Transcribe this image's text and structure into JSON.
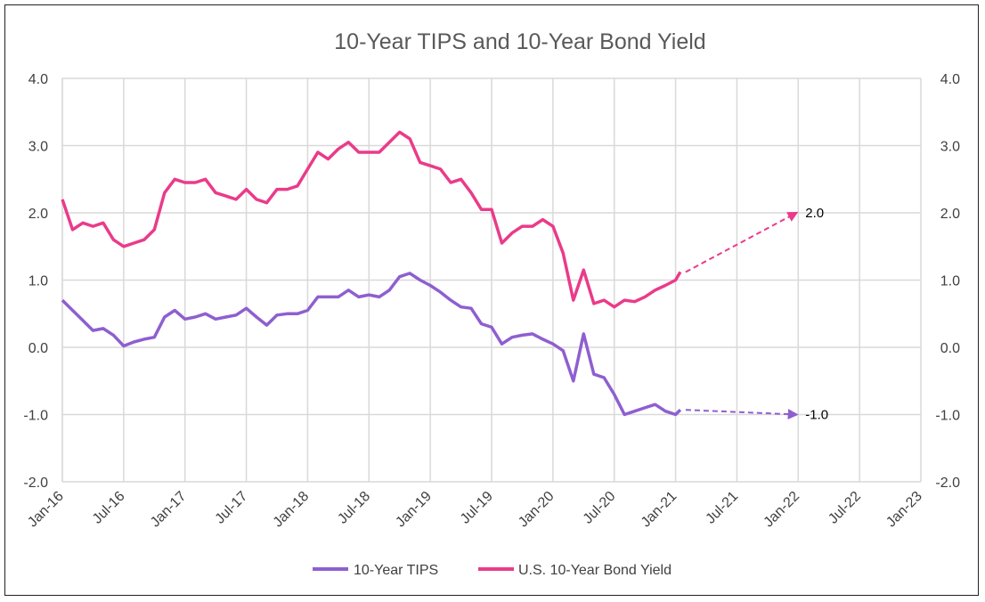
{
  "chart_data": {
    "type": "line",
    "title": "10-Year TIPS and 10-Year Bond Yield",
    "x_ticks": [
      "Jan-16",
      "Jul-16",
      "Jan-17",
      "Jul-17",
      "Jan-18",
      "Jul-18",
      "Jan-19",
      "Jul-19",
      "Jan-20",
      "Jul-20",
      "Jan-21",
      "Jul-21",
      "Jan-22",
      "Jul-22",
      "Jan-23"
    ],
    "xlim": [
      "2016-01",
      "2023-01"
    ],
    "ylim": [
      -2.0,
      4.0
    ],
    "y_ticks": [
      "-2.0",
      "-1.0",
      "0.0",
      "1.0",
      "2.0",
      "3.0",
      "4.0"
    ],
    "grid": true,
    "legend_position": "bottom",
    "series": [
      {
        "name": "10-Year TIPS",
        "color": "#8e5fd0",
        "points": [
          [
            "2016-01",
            0.7
          ],
          [
            "2016-02",
            0.55
          ],
          [
            "2016-03",
            0.4
          ],
          [
            "2016-04",
            0.25
          ],
          [
            "2016-05",
            0.28
          ],
          [
            "2016-06",
            0.18
          ],
          [
            "2016-07",
            0.02
          ],
          [
            "2016-08",
            0.08
          ],
          [
            "2016-09",
            0.12
          ],
          [
            "2016-10",
            0.15
          ],
          [
            "2016-11",
            0.45
          ],
          [
            "2016-12",
            0.55
          ],
          [
            "2017-01",
            0.42
          ],
          [
            "2017-02",
            0.45
          ],
          [
            "2017-03",
            0.5
          ],
          [
            "2017-04",
            0.42
          ],
          [
            "2017-05",
            0.45
          ],
          [
            "2017-06",
            0.48
          ],
          [
            "2017-07",
            0.58
          ],
          [
            "2017-08",
            0.45
          ],
          [
            "2017-09",
            0.33
          ],
          [
            "2017-10",
            0.48
          ],
          [
            "2017-11",
            0.5
          ],
          [
            "2017-12",
            0.5
          ],
          [
            "2018-01",
            0.55
          ],
          [
            "2018-02",
            0.75
          ],
          [
            "2018-03",
            0.75
          ],
          [
            "2018-04",
            0.75
          ],
          [
            "2018-05",
            0.85
          ],
          [
            "2018-06",
            0.75
          ],
          [
            "2018-07",
            0.78
          ],
          [
            "2018-08",
            0.75
          ],
          [
            "2018-09",
            0.85
          ],
          [
            "2018-10",
            1.05
          ],
          [
            "2018-11",
            1.1
          ],
          [
            "2018-12",
            1.0
          ],
          [
            "2019-01",
            0.92
          ],
          [
            "2019-02",
            0.82
          ],
          [
            "2019-03",
            0.7
          ],
          [
            "2019-04",
            0.6
          ],
          [
            "2019-05",
            0.58
          ],
          [
            "2019-06",
            0.35
          ],
          [
            "2019-07",
            0.3
          ],
          [
            "2019-08",
            0.05
          ],
          [
            "2019-09",
            0.15
          ],
          [
            "2019-10",
            0.18
          ],
          [
            "2019-11",
            0.2
          ],
          [
            "2019-12",
            0.12
          ],
          [
            "2020-01",
            0.05
          ],
          [
            "2020-02",
            -0.05
          ],
          [
            "2020-03",
            -0.5
          ],
          [
            "2020-04",
            0.2
          ],
          [
            "2020-05",
            -0.4
          ],
          [
            "2020-06",
            -0.45
          ],
          [
            "2020-07",
            -0.7
          ],
          [
            "2020-08",
            -1.0
          ],
          [
            "2020-09",
            -0.95
          ],
          [
            "2020-10",
            -0.9
          ],
          [
            "2020-11",
            -0.85
          ],
          [
            "2020-12",
            -0.95
          ],
          [
            "2021-01",
            -1.0
          ],
          [
            "2021-01-15",
            -0.93
          ]
        ],
        "projection": {
          "to": "2022-01",
          "value": -1.0,
          "label": "-1.0"
        }
      },
      {
        "name": "U.S. 10-Year Bond Yield",
        "color": "#ea3b8a",
        "points": [
          [
            "2016-01",
            2.2
          ],
          [
            "2016-02",
            1.75
          ],
          [
            "2016-03",
            1.85
          ],
          [
            "2016-04",
            1.8
          ],
          [
            "2016-05",
            1.85
          ],
          [
            "2016-06",
            1.6
          ],
          [
            "2016-07",
            1.5
          ],
          [
            "2016-08",
            1.55
          ],
          [
            "2016-09",
            1.6
          ],
          [
            "2016-10",
            1.75
          ],
          [
            "2016-11",
            2.3
          ],
          [
            "2016-12",
            2.5
          ],
          [
            "2017-01",
            2.45
          ],
          [
            "2017-02",
            2.45
          ],
          [
            "2017-03",
            2.5
          ],
          [
            "2017-04",
            2.3
          ],
          [
            "2017-05",
            2.25
          ],
          [
            "2017-06",
            2.2
          ],
          [
            "2017-07",
            2.35
          ],
          [
            "2017-08",
            2.2
          ],
          [
            "2017-09",
            2.15
          ],
          [
            "2017-10",
            2.35
          ],
          [
            "2017-11",
            2.35
          ],
          [
            "2017-12",
            2.4
          ],
          [
            "2018-01",
            2.65
          ],
          [
            "2018-02",
            2.9
          ],
          [
            "2018-03",
            2.8
          ],
          [
            "2018-04",
            2.95
          ],
          [
            "2018-05",
            3.05
          ],
          [
            "2018-06",
            2.9
          ],
          [
            "2018-07",
            2.9
          ],
          [
            "2018-08",
            2.9
          ],
          [
            "2018-09",
            3.05
          ],
          [
            "2018-10",
            3.2
          ],
          [
            "2018-11",
            3.1
          ],
          [
            "2018-12",
            2.75
          ],
          [
            "2019-01",
            2.7
          ],
          [
            "2019-02",
            2.65
          ],
          [
            "2019-03",
            2.45
          ],
          [
            "2019-04",
            2.5
          ],
          [
            "2019-05",
            2.3
          ],
          [
            "2019-06",
            2.05
          ],
          [
            "2019-07",
            2.05
          ],
          [
            "2019-08",
            1.55
          ],
          [
            "2019-09",
            1.7
          ],
          [
            "2019-10",
            1.8
          ],
          [
            "2019-11",
            1.8
          ],
          [
            "2019-12",
            1.9
          ],
          [
            "2020-01",
            1.8
          ],
          [
            "2020-02",
            1.4
          ],
          [
            "2020-03",
            0.7
          ],
          [
            "2020-04",
            1.15
          ],
          [
            "2020-05",
            0.65
          ],
          [
            "2020-06",
            0.7
          ],
          [
            "2020-07",
            0.6
          ],
          [
            "2020-08",
            0.7
          ],
          [
            "2020-09",
            0.68
          ],
          [
            "2020-10",
            0.75
          ],
          [
            "2020-11",
            0.85
          ],
          [
            "2020-12",
            0.92
          ],
          [
            "2021-01",
            1.0
          ],
          [
            "2021-01-15",
            1.12
          ]
        ],
        "projection": {
          "to": "2022-01",
          "value": 2.0,
          "label": "2.0"
        }
      }
    ]
  }
}
